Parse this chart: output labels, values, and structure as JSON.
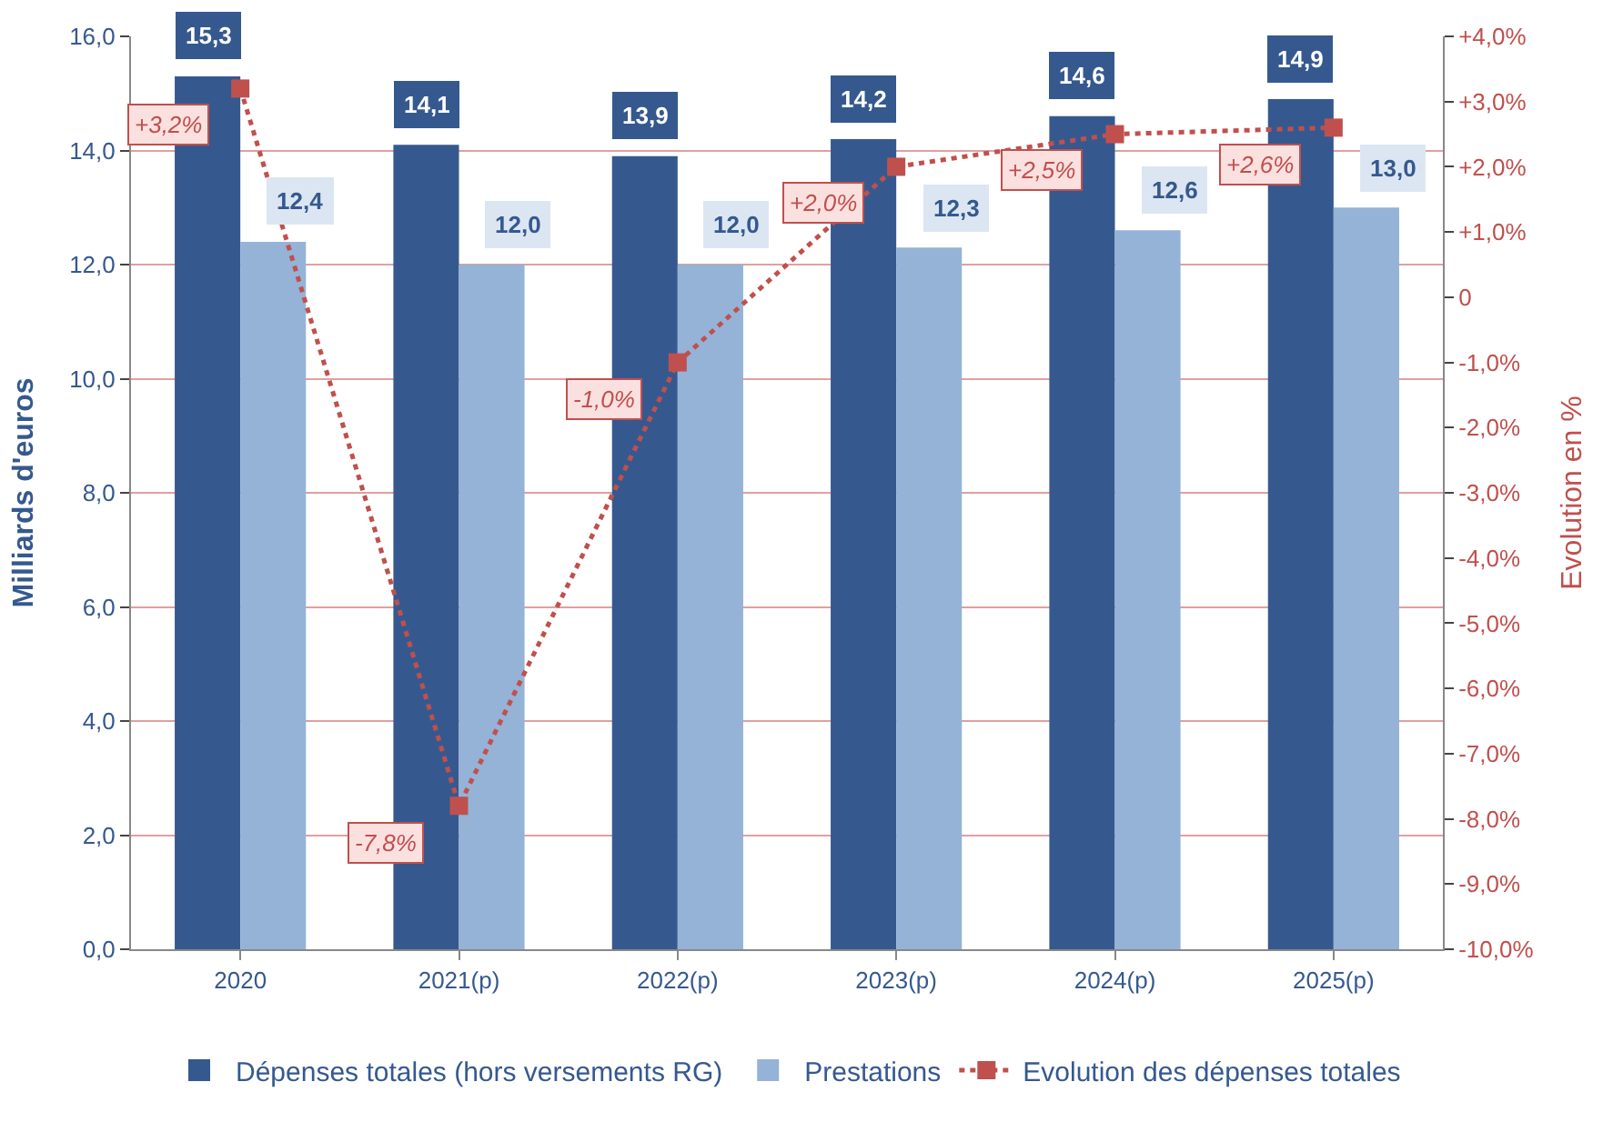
{
  "chart_data": {
    "type": "bar",
    "ylabel": "Milliards d'euros",
    "y2label": "Evolution en %",
    "categories": [
      "2020",
      "2021(p)",
      "2022(p)",
      "2023(p)",
      "2024(p)",
      "2025(p)"
    ],
    "series": [
      {
        "name": "Dépenses totales (hors versements RG)",
        "color": "#35598f",
        "values": [
          15.3,
          14.1,
          13.9,
          14.2,
          14.6,
          14.9
        ],
        "value_labels": [
          "15,3",
          "14,1",
          "13,9",
          "14,2",
          "14,6",
          "14,9"
        ]
      },
      {
        "name": "Prestations",
        "color": "#95b3d7",
        "values": [
          12.4,
          12.0,
          12.0,
          12.3,
          12.6,
          13.0
        ],
        "value_labels": [
          "12,4",
          "12,0",
          "12,0",
          "12,3",
          "12,6",
          "13,0"
        ]
      },
      {
        "name": "Evolution des dépenses totales",
        "type": "line",
        "axis": "y2",
        "color": "#c0504d",
        "marker": "square",
        "line_style": "dotted",
        "values": [
          3.2,
          -7.8,
          -1.0,
          2.0,
          2.5,
          2.6
        ],
        "value_labels": [
          "+3,2%",
          "-7,8%",
          "-1,0%",
          "+2,0%",
          "+2,5%",
          "+2,6%"
        ]
      }
    ],
    "ylim": [
      0,
      16
    ],
    "yticks": [
      {
        "value": 0,
        "label": "0,0"
      },
      {
        "value": 2,
        "label": "2,0"
      },
      {
        "value": 4,
        "label": "4,0"
      },
      {
        "value": 6,
        "label": "6,0"
      },
      {
        "value": 8,
        "label": "8,0"
      },
      {
        "value": 10,
        "label": "10,0"
      },
      {
        "value": 12,
        "label": "12,0"
      },
      {
        "value": 14,
        "label": "14,0"
      },
      {
        "value": 16,
        "label": "16,0"
      }
    ],
    "y2lim": [
      -10,
      4
    ],
    "y2ticks": [
      {
        "value": -10,
        "label": "-10,0%"
      },
      {
        "value": -9,
        "label": "-9,0%"
      },
      {
        "value": -8,
        "label": "-8,0%"
      },
      {
        "value": -7,
        "label": "-7,0%"
      },
      {
        "value": -6,
        "label": "-6,0%"
      },
      {
        "value": -5,
        "label": "-5,0%"
      },
      {
        "value": -4,
        "label": "-4,0%"
      },
      {
        "value": -3,
        "label": "-3,0%"
      },
      {
        "value": -2,
        "label": "-2,0%"
      },
      {
        "value": -1,
        "label": "-1,0%"
      },
      {
        "value": 0,
        "label": "0"
      },
      {
        "value": 1,
        "label": "+1,0%"
      },
      {
        "value": 2,
        "label": "+2,0%"
      },
      {
        "value": 3,
        "label": "+3,0%"
      },
      {
        "value": 4,
        "label": "+4,0%"
      }
    ],
    "grid": "y",
    "legend": "bottom"
  }
}
